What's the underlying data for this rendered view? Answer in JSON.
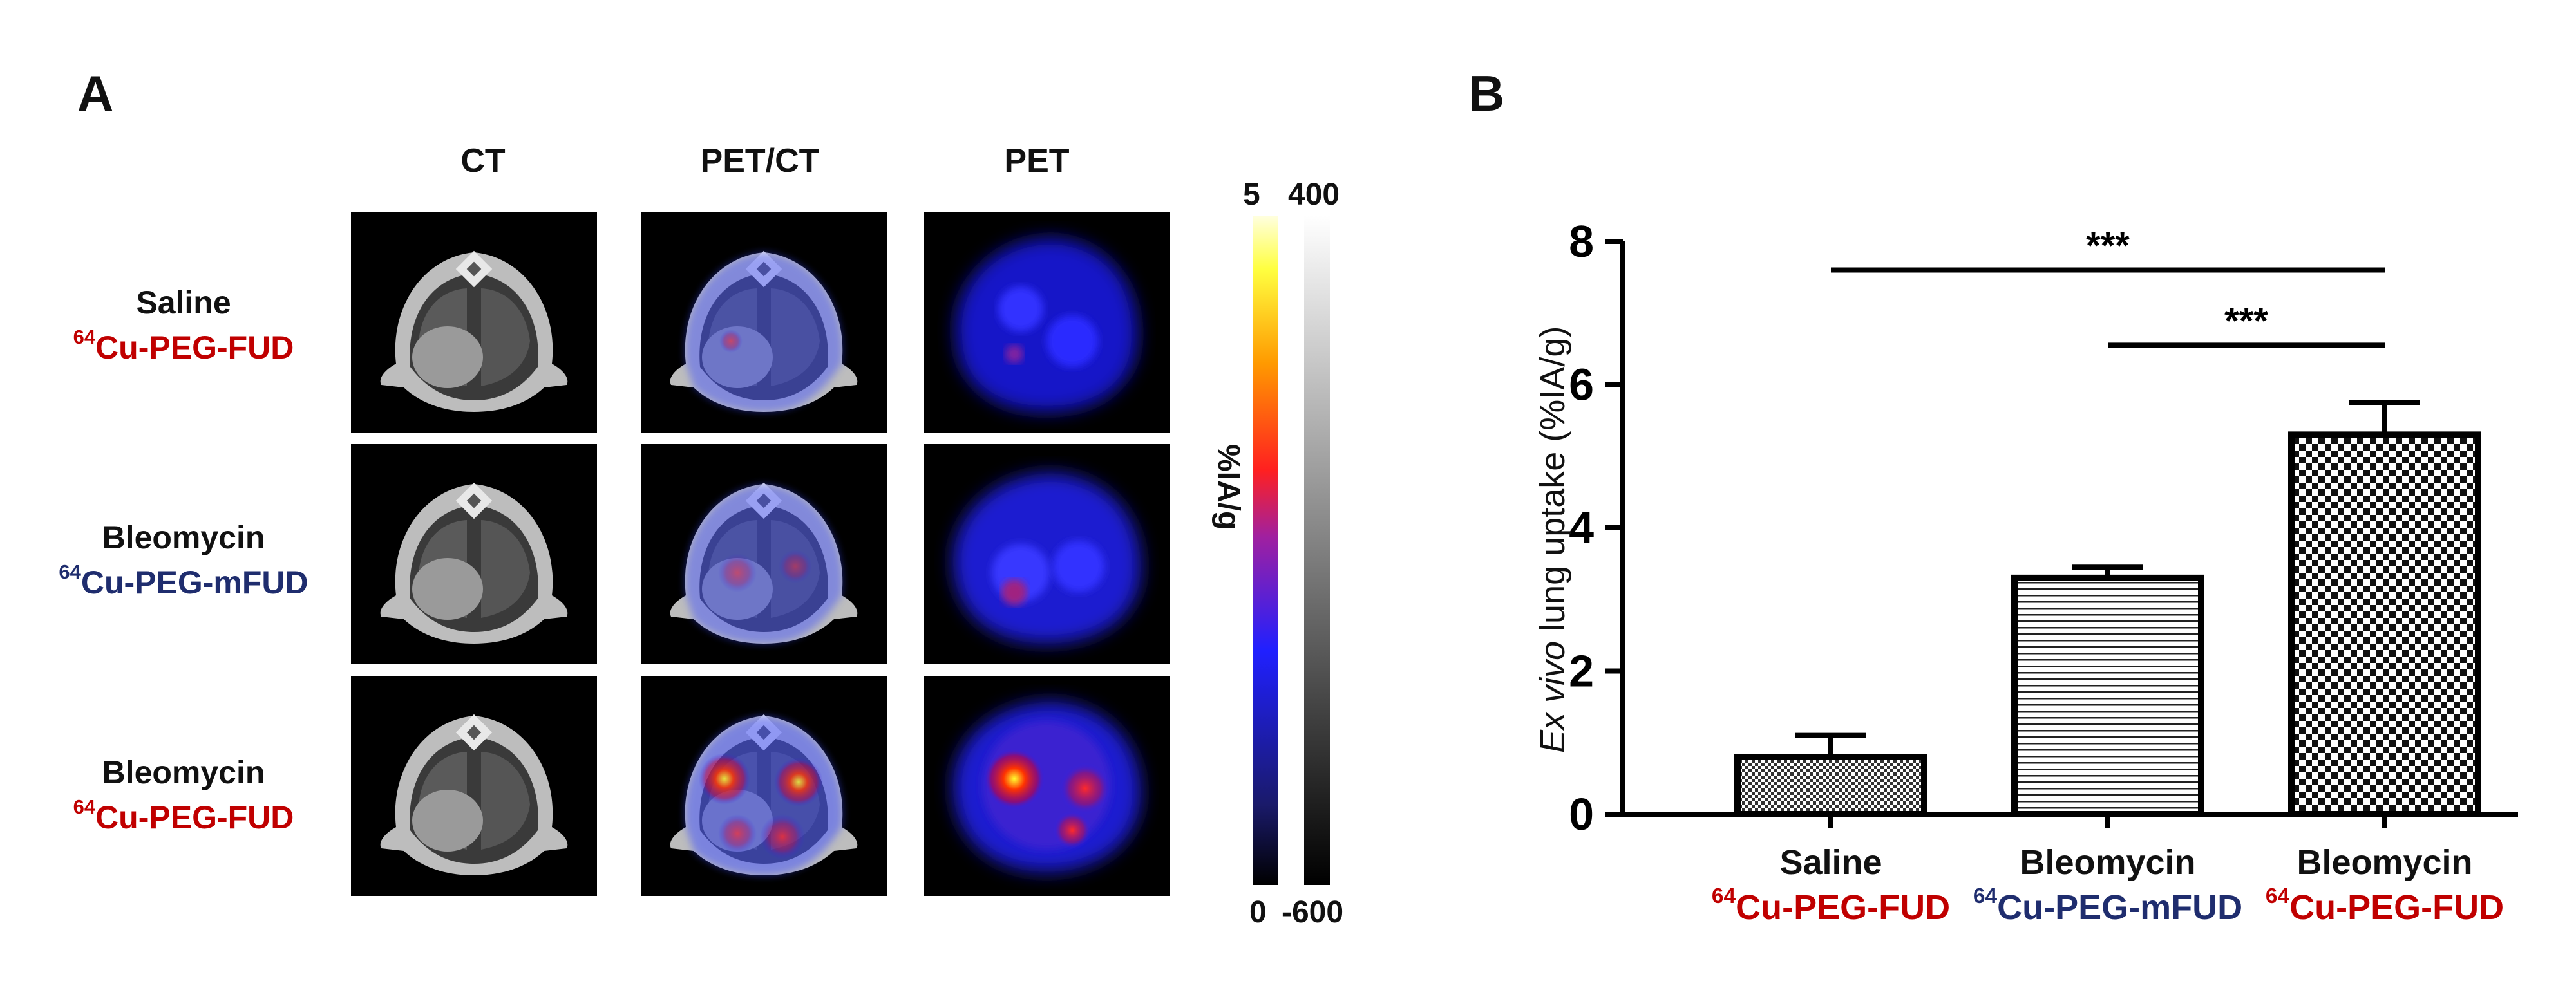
{
  "panelA": {
    "letter": "A",
    "columns": [
      "CT",
      "PET/CT",
      "PET"
    ],
    "rows": [
      {
        "line1": "Saline",
        "isotope": "64",
        "probe": "Cu-PEG-FUD",
        "probe_color": "#c00000"
      },
      {
        "line1": "Bleomycin",
        "isotope": "64",
        "probe": "Cu-PEG-mFUD",
        "probe_color": "#1f2d6e"
      },
      {
        "line1": "Bleomycin",
        "isotope": "64",
        "probe": "Cu-PEG-FUD",
        "probe_color": "#c00000"
      }
    ],
    "colorbar": {
      "pet_max": "5",
      "pet_min": "0",
      "ct_max": "400",
      "ct_min": "-600",
      "unit": "%IA/g"
    }
  },
  "panelB": {
    "letter": "B",
    "categories": [
      {
        "line1": "Saline",
        "isotope": "64",
        "probe": "Cu-PEG-FUD",
        "probe_color": "#c00000"
      },
      {
        "line1": "Bleomycin",
        "isotope": "64",
        "probe": "Cu-PEG-mFUD",
        "probe_color": "#1f2d6e"
      },
      {
        "line1": "Bleomycin",
        "isotope": "64",
        "probe": "Cu-PEG-FUD",
        "probe_color": "#c00000"
      }
    ],
    "ylabel_italic": "Ex vivo",
    "ylabel_rest": " lung uptake (%IA/g)",
    "significance": [
      "***",
      "***"
    ]
  },
  "chart_data": {
    "type": "bar",
    "categories": [
      "Saline 64Cu-PEG-FUD",
      "Bleomycin 64Cu-PEG-mFUD",
      "Bleomycin 64Cu-PEG-FUD"
    ],
    "values": [
      0.8,
      3.3,
      5.3
    ],
    "errors": [
      0.3,
      0.15,
      0.45
    ],
    "patterns": [
      "fine-dots",
      "horizontal-lines",
      "checkerboard"
    ],
    "ylabel": "Ex vivo lung uptake (%IA/g)",
    "ylim": [
      0,
      8
    ],
    "yticks": [
      0,
      2,
      4,
      6,
      8
    ],
    "significance": [
      {
        "from": 0,
        "to": 2,
        "label": "***"
      },
      {
        "from": 1,
        "to": 2,
        "label": "***"
      }
    ],
    "grid": false
  }
}
